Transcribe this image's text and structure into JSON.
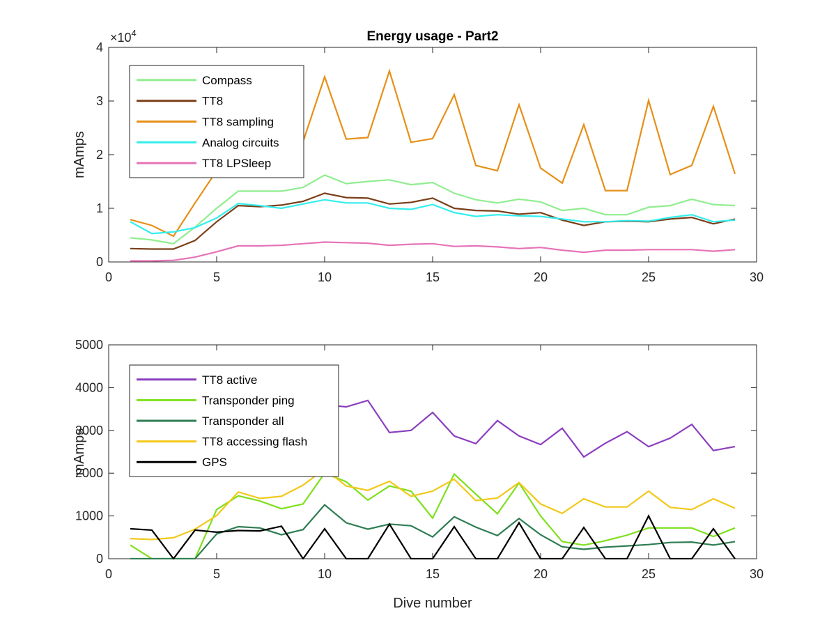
{
  "figure": {
    "title": "Energy usage - Part2",
    "x_tick_labels": [
      "0",
      "5",
      "10",
      "15",
      "20",
      "25",
      "30"
    ]
  },
  "chart_data": [
    {
      "type": "line",
      "title": "Energy usage - Part2",
      "xlabel": "",
      "ylabel": "mAmps",
      "xlim": [
        0,
        30
      ],
      "ylim": [
        0,
        40000
      ],
      "x_ticks": [
        0,
        5,
        10,
        15,
        20,
        25,
        30
      ],
      "y_ticks": [
        0,
        10000,
        20000,
        30000,
        40000
      ],
      "y_tick_labels": [
        "0",
        "1",
        "2",
        "3",
        "4"
      ],
      "exponent_label": "×10",
      "exponent_power": "4",
      "grid": false,
      "legend_position": "top-left",
      "x": [
        1,
        2,
        3,
        4,
        5,
        6,
        7,
        8,
        9,
        10,
        11,
        12,
        13,
        14,
        15,
        16,
        17,
        18,
        19,
        20,
        21,
        22,
        23,
        24,
        25,
        26,
        27,
        28,
        29
      ],
      "series": [
        {
          "name": "Compass",
          "color": "#90ee90",
          "values": [
            4500,
            4100,
            3400,
            6500,
            10000,
            13200,
            13200,
            13200,
            13900,
            16200,
            14600,
            15000,
            15300,
            14400,
            14800,
            12800,
            11600,
            11000,
            11700,
            11200,
            9600,
            10000,
            8800,
            8800,
            10200,
            10500,
            11700,
            10700,
            10500
          ]
        },
        {
          "name": "TT8",
          "color": "#7b3f1a",
          "values": [
            2500,
            2400,
            2400,
            4000,
            7500,
            10500,
            10300,
            10600,
            11300,
            12800,
            12000,
            11900,
            10800,
            11100,
            11900,
            10000,
            9600,
            9500,
            8900,
            9200,
            7800,
            6800,
            7500,
            7600,
            7500,
            8000,
            8300,
            7100,
            8000
          ]
        },
        {
          "name": "TT8 sampling",
          "color": "#e69018",
          "values": [
            7900,
            6800,
            4800,
            11000,
            17000,
            21300,
            21000,
            21300,
            22400,
            34500,
            22900,
            23200,
            35600,
            22300,
            23000,
            31200,
            18000,
            17000,
            29300,
            17500,
            14700,
            25600,
            13300,
            13300,
            30100,
            16300,
            18000,
            29000,
            16400
          ]
        },
        {
          "name": "Analog circuits",
          "color": "#33eeee",
          "values": [
            7500,
            5300,
            5600,
            6400,
            8200,
            10900,
            10500,
            10000,
            10800,
            11600,
            11000,
            11000,
            10000,
            9800,
            10700,
            9200,
            8500,
            8800,
            8600,
            8500,
            8000,
            7500,
            7500,
            7700,
            7600,
            8300,
            8800,
            7500,
            7800
          ]
        },
        {
          "name": "TT8 LPSleep",
          "color": "#e673b8",
          "values": [
            200,
            200,
            300,
            900,
            1900,
            3000,
            3000,
            3100,
            3400,
            3700,
            3600,
            3500,
            3100,
            3300,
            3400,
            2900,
            3000,
            2800,
            2500,
            2700,
            2200,
            1800,
            2200,
            2200,
            2300,
            2300,
            2300,
            2000,
            2300
          ]
        }
      ]
    },
    {
      "type": "line",
      "title": "",
      "xlabel": "Dive number",
      "ylabel": "mAmps",
      "xlim": [
        0,
        30
      ],
      "ylim": [
        0,
        5000
      ],
      "x_ticks": [
        0,
        5,
        10,
        15,
        20,
        25,
        30
      ],
      "y_ticks": [
        0,
        1000,
        2000,
        3000,
        4000,
        5000
      ],
      "y_tick_labels": [
        "0",
        "1000",
        "2000",
        "3000",
        "4000",
        "5000"
      ],
      "grid": false,
      "legend_position": "top-left",
      "x": [
        1,
        2,
        3,
        4,
        5,
        6,
        7,
        8,
        9,
        10,
        11,
        12,
        13,
        14,
        15,
        16,
        17,
        18,
        19,
        20,
        21,
        22,
        23,
        24,
        25,
        26,
        27,
        28,
        29
      ],
      "series": [
        {
          "name": "TT8 active",
          "color": "#8b3fbf",
          "values": [
            2900,
            2800,
            2800,
            2900,
            3000,
            3100,
            3200,
            3300,
            3400,
            3600,
            3550,
            3700,
            2950,
            3000,
            3420,
            2870,
            2690,
            3230,
            2870,
            2670,
            3050,
            2380,
            2700,
            2970,
            2620,
            2820,
            3140,
            2530,
            2620
          ]
        },
        {
          "name": "Transponder ping",
          "color": "#7ee01c",
          "values": [
            320,
            0,
            0,
            0,
            1150,
            1470,
            1350,
            1170,
            1280,
            2000,
            1800,
            1370,
            1700,
            1580,
            950,
            1980,
            1510,
            1050,
            1770,
            1000,
            400,
            320,
            420,
            550,
            720,
            720,
            720,
            520,
            720
          ]
        },
        {
          "name": "Transponder all",
          "color": "#2e7d52",
          "values": [
            0,
            0,
            0,
            0,
            580,
            750,
            720,
            560,
            680,
            1260,
            840,
            690,
            810,
            770,
            510,
            980,
            740,
            540,
            940,
            560,
            280,
            220,
            270,
            300,
            330,
            380,
            390,
            320,
            400
          ]
        },
        {
          "name": "TT8 accessing flash",
          "color": "#f2c81a",
          "values": [
            470,
            450,
            490,
            690,
            1010,
            1560,
            1410,
            1460,
            1720,
            2100,
            1700,
            1600,
            1810,
            1460,
            1580,
            1860,
            1360,
            1420,
            1780,
            1280,
            1060,
            1400,
            1210,
            1210,
            1580,
            1200,
            1150,
            1400,
            1180
          ]
        },
        {
          "name": "GPS",
          "color": "#000000",
          "values": [
            700,
            670,
            0,
            670,
            620,
            660,
            650,
            760,
            0,
            700,
            0,
            0,
            810,
            0,
            0,
            750,
            0,
            0,
            840,
            0,
            0,
            730,
            0,
            0,
            1000,
            0,
            0,
            700,
            0
          ]
        }
      ]
    }
  ]
}
